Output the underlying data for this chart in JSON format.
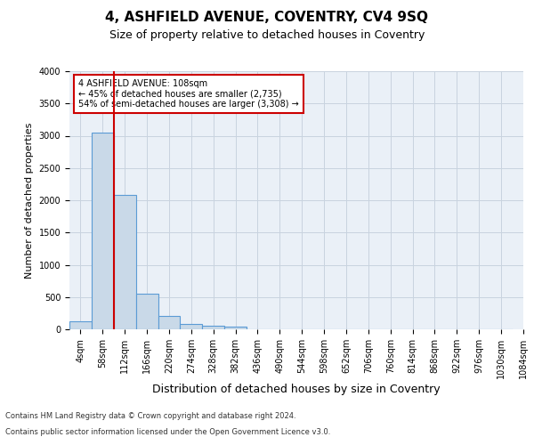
{
  "title1": "4, ASHFIELD AVENUE, COVENTRY, CV4 9SQ",
  "title2": "Size of property relative to detached houses in Coventry",
  "xlabel": "Distribution of detached houses by size in Coventry",
  "ylabel": "Number of detached properties",
  "bin_labels": [
    "4sqm",
    "58sqm",
    "112sqm",
    "166sqm",
    "220sqm",
    "274sqm",
    "328sqm",
    "382sqm",
    "436sqm",
    "490sqm",
    "544sqm",
    "598sqm",
    "652sqm",
    "706sqm",
    "760sqm",
    "814sqm",
    "868sqm",
    "922sqm",
    "976sqm",
    "1030sqm",
    "1084sqm"
  ],
  "bar_values": [
    130,
    3050,
    2080,
    550,
    210,
    80,
    50,
    40,
    0,
    0,
    0,
    0,
    0,
    0,
    0,
    0,
    0,
    0,
    0,
    0
  ],
  "bar_color": "#c9d9e8",
  "bar_edge_color": "#5b9bd5",
  "red_line_index": 2,
  "red_line_color": "#cc0000",
  "ylim": [
    0,
    4000
  ],
  "yticks": [
    0,
    500,
    1000,
    1500,
    2000,
    2500,
    3000,
    3500,
    4000
  ],
  "annotation_text": "4 ASHFIELD AVENUE: 108sqm\n← 45% of detached houses are smaller (2,735)\n54% of semi-detached houses are larger (3,308) →",
  "annotation_box_color": "#ffffff",
  "annotation_box_edge": "#cc0000",
  "footer1": "Contains HM Land Registry data © Crown copyright and database right 2024.",
  "footer2": "Contains public sector information licensed under the Open Government Licence v3.0.",
  "bg_color": "#ffffff",
  "grid_color": "#c8d3df",
  "ax_bg_color": "#eaf0f7",
  "title1_fontsize": 11,
  "title2_fontsize": 9,
  "xlabel_fontsize": 9,
  "ylabel_fontsize": 8,
  "tick_fontsize": 7,
  "footer_fontsize": 6,
  "annot_fontsize": 7
}
